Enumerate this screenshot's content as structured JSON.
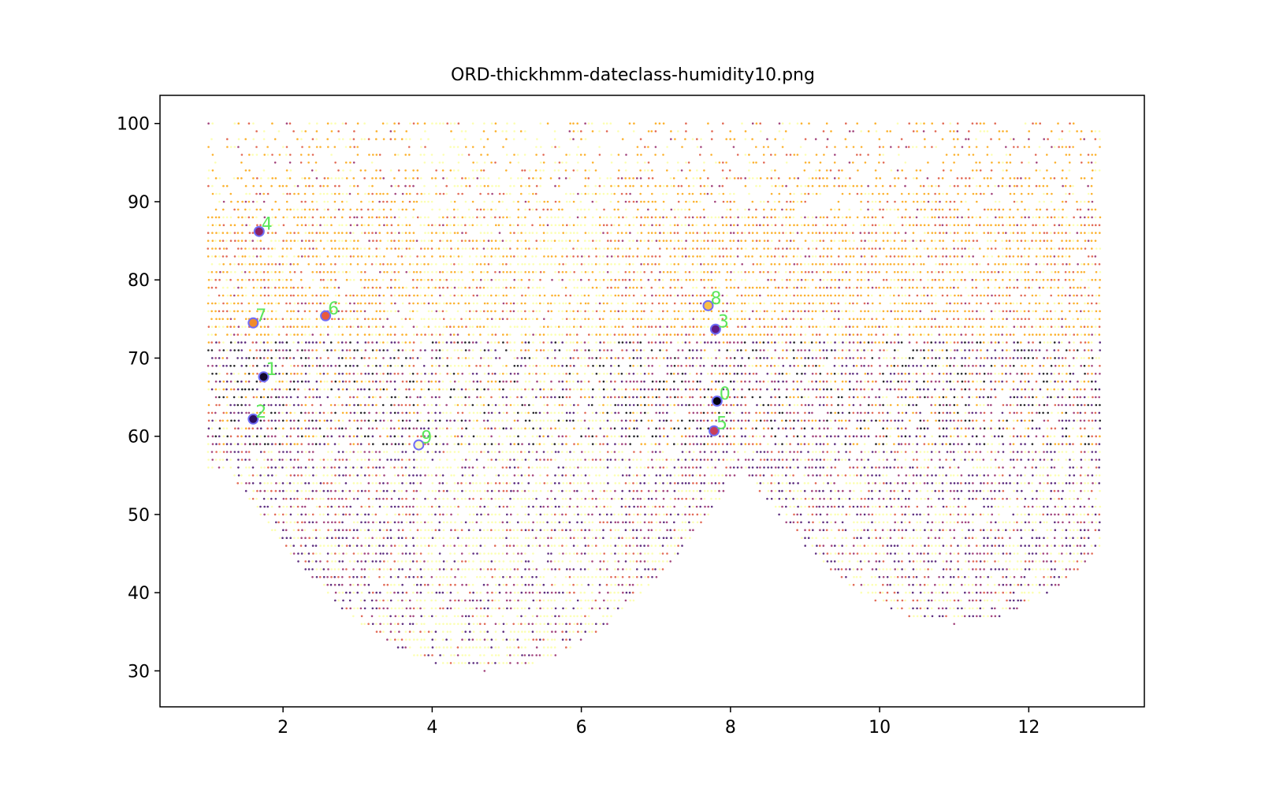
{
  "chart_data": {
    "type": "scatter",
    "title": "ORD-thickhmm-dateclass-humidity10.png",
    "xlabel": "",
    "ylabel": "",
    "xlim": [
      0.35,
      13.55
    ],
    "ylim": [
      25.4,
      103.6
    ],
    "x_ticks": [
      2,
      4,
      6,
      8,
      10,
      12
    ],
    "y_ticks": [
      30,
      40,
      50,
      60,
      70,
      80,
      90,
      100
    ],
    "grid": false,
    "legend": "none",
    "background_points": {
      "description_of_distribution": "dense per-day humidity observations, x from 1 to 13, integer humidity levels mostly 50-100",
      "x_range": [
        1.0,
        12.95
      ],
      "palette": [
        "#000004",
        "#420a68",
        "#932667",
        "#dd513a",
        "#fca50a",
        "#fcffa4"
      ]
    },
    "markers": [
      {
        "label": "0",
        "x": 7.82,
        "y": 64.5,
        "fill": "#050312"
      },
      {
        "label": "1",
        "x": 1.74,
        "y": 67.6,
        "fill": "#14092e"
      },
      {
        "label": "2",
        "x": 1.6,
        "y": 62.2,
        "fill": "#2c0f62"
      },
      {
        "label": "3",
        "x": 7.8,
        "y": 73.7,
        "fill": "#5d1a86"
      },
      {
        "label": "4",
        "x": 1.68,
        "y": 86.2,
        "fill": "#8a2266"
      },
      {
        "label": "5",
        "x": 7.78,
        "y": 60.7,
        "fill": "#c83e5a"
      },
      {
        "label": "6",
        "x": 2.57,
        "y": 75.4,
        "fill": "#e85a3c"
      },
      {
        "label": "7",
        "x": 1.6,
        "y": 74.5,
        "fill": "#f08d2a"
      },
      {
        "label": "8",
        "x": 7.7,
        "y": 76.7,
        "fill": "#f9bf45"
      },
      {
        "label": "9",
        "x": 3.82,
        "y": 58.9,
        "fill": "#fcf8c4"
      }
    ],
    "marker_edge_color": "#6f6cf7",
    "marker_label_color": "#5ce65c"
  }
}
